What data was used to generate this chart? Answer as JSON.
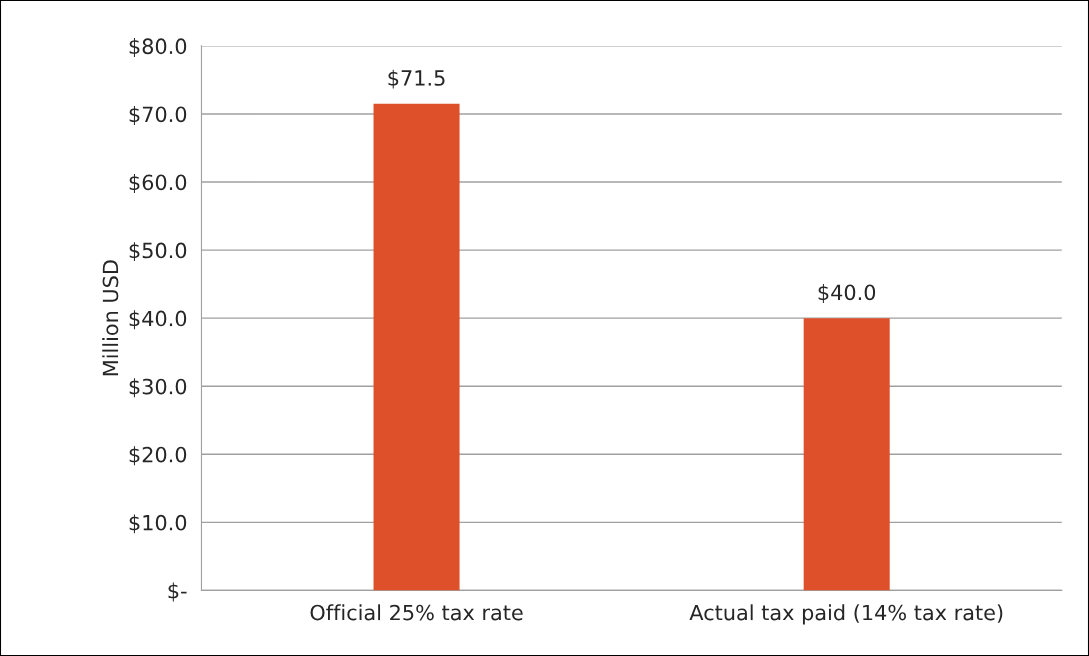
{
  "chart_data": {
    "type": "bar",
    "ylabel": "Million USD",
    "categories": [
      "Official 25% tax rate",
      "Actual tax paid (14% tax rate)"
    ],
    "values": [
      71.5,
      40.0
    ],
    "color": "#dd5029",
    "value_labels": [
      "$71.5",
      "$40.0"
    ],
    "ylim": [
      0,
      80
    ],
    "yticks": [
      {
        "value": 0,
        "label": "$-"
      },
      {
        "value": 10,
        "label": "$10.0"
      },
      {
        "value": 20,
        "label": "$20.0"
      },
      {
        "value": 30,
        "label": "$30.0"
      },
      {
        "value": 40,
        "label": "$40.0"
      },
      {
        "value": 50,
        "label": "$50.0"
      },
      {
        "value": 60,
        "label": "$60.0"
      },
      {
        "value": 70,
        "label": "$70.0"
      },
      {
        "value": 80,
        "label": "$80.0"
      }
    ],
    "grid": "y"
  }
}
